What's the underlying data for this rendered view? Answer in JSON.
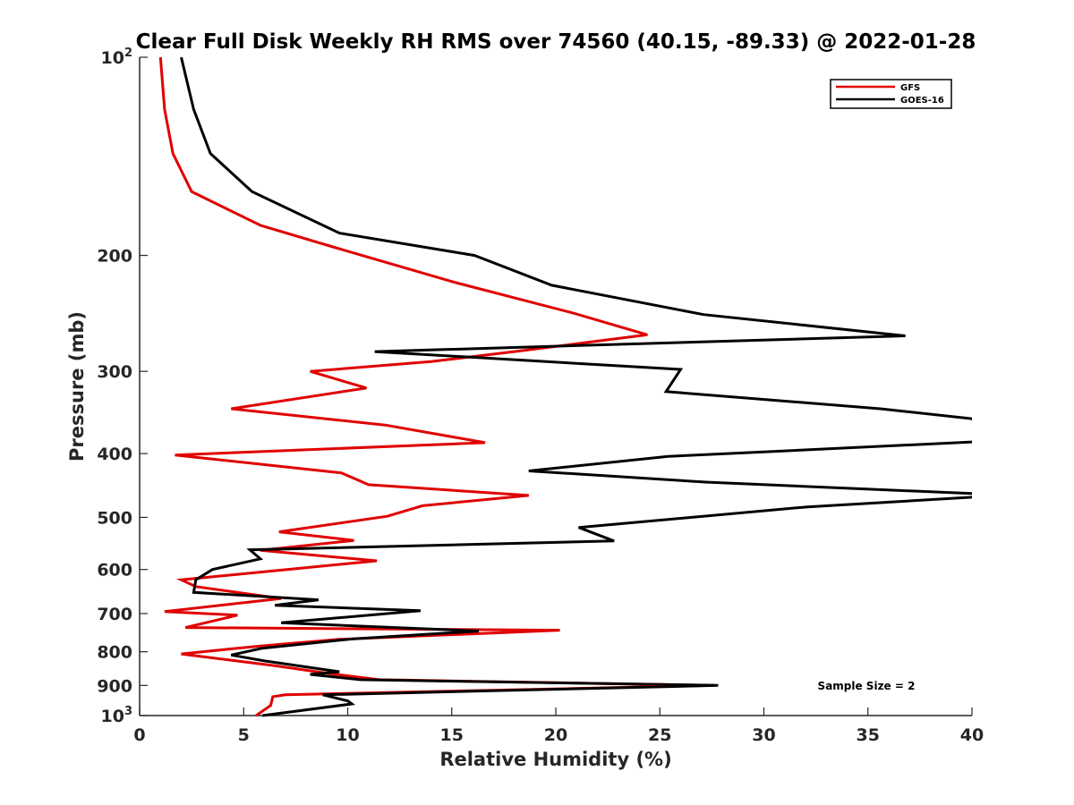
{
  "chart_data": {
    "type": "line",
    "title": "Clear Full Disk Weekly RH RMS over 74560 (40.15, -89.33) @ 2022-01-28",
    "xlabel": "Relative Humidity (%)",
    "ylabel": "Pressure (mb)",
    "xlim": [
      0,
      40
    ],
    "ylim": [
      100,
      1000
    ],
    "y_scale": "log",
    "y_reversed": true,
    "x_ticks": [
      "0",
      "5",
      "10",
      "15",
      "20",
      "25",
      "30",
      "35",
      "40"
    ],
    "x_tick_values": [
      0,
      5,
      10,
      15,
      20,
      25,
      30,
      35,
      40
    ],
    "y_ticks": [
      {
        "value": 100,
        "base": "10",
        "exp": "2"
      },
      {
        "value": 200,
        "label": "200"
      },
      {
        "value": 300,
        "label": "300"
      },
      {
        "value": 400,
        "label": "400"
      },
      {
        "value": 500,
        "label": "500"
      },
      {
        "value": 600,
        "label": "600"
      },
      {
        "value": 700,
        "label": "700"
      },
      {
        "value": 800,
        "label": "800"
      },
      {
        "value": 900,
        "label": "900"
      },
      {
        "value": 1000,
        "base": "10",
        "exp": "3"
      }
    ],
    "grid": false,
    "legend_position": "top-right",
    "annotation": "Sample Size = 2",
    "series": [
      {
        "name": "GFS",
        "color": "#e00000",
        "points": [
          [
            1.0,
            100
          ],
          [
            1.2,
            120
          ],
          [
            1.6,
            140
          ],
          [
            2.5,
            160
          ],
          [
            5.8,
            180
          ],
          [
            9.5,
            195
          ],
          [
            15.2,
            220
          ],
          [
            20.9,
            245
          ],
          [
            24.4,
            264
          ],
          [
            18.0,
            280
          ],
          [
            14.0,
            290
          ],
          [
            8.2,
            300
          ],
          [
            10.9,
            318
          ],
          [
            4.4,
            342
          ],
          [
            11.8,
            362
          ],
          [
            16.6,
            385
          ],
          [
            1.7,
            402
          ],
          [
            9.7,
            428
          ],
          [
            11.0,
            446
          ],
          [
            18.7,
            463
          ],
          [
            13.6,
            480
          ],
          [
            11.9,
            498
          ],
          [
            6.7,
            526
          ],
          [
            10.3,
            542
          ],
          [
            5.8,
            561
          ],
          [
            11.4,
            582
          ],
          [
            2.0,
            622
          ],
          [
            2.7,
            637
          ],
          [
            6.8,
            664
          ],
          [
            1.2,
            695
          ],
          [
            4.7,
            704
          ],
          [
            2.2,
            735
          ],
          [
            20.2,
            742
          ],
          [
            9.6,
            766
          ],
          [
            5.8,
            784
          ],
          [
            2.0,
            806
          ],
          [
            6.5,
            840
          ],
          [
            9.3,
            865
          ],
          [
            11.5,
            882
          ],
          [
            27.6,
            900
          ],
          [
            7.0,
            930
          ],
          [
            6.4,
            936
          ],
          [
            6.3,
            965
          ],
          [
            5.6,
            1000
          ]
        ]
      },
      {
        "name": "GOES-16",
        "color": "#000000",
        "points": [
          [
            2.0,
            100
          ],
          [
            2.6,
            120
          ],
          [
            3.4,
            140
          ],
          [
            5.4,
            160
          ],
          [
            9.6,
            185
          ],
          [
            16.1,
            200
          ],
          [
            19.8,
            222
          ],
          [
            27.1,
            246
          ],
          [
            36.8,
            265
          ],
          [
            11.3,
            280
          ],
          [
            26.0,
            298
          ],
          [
            25.3,
            322
          ],
          [
            35.6,
            342
          ],
          [
            40.0,
            354
          ],
          [
            40.5,
            374
          ],
          [
            40.0,
            384
          ],
          [
            25.4,
            404
          ],
          [
            18.7,
            425
          ],
          [
            27.2,
            442
          ],
          [
            40.0,
            460
          ],
          [
            40.5,
            462
          ],
          [
            40.0,
            466
          ],
          [
            32.1,
            482
          ],
          [
            21.1,
            518
          ],
          [
            22.8,
            543
          ],
          [
            5.3,
            560
          ],
          [
            5.8,
            578
          ],
          [
            3.5,
            600
          ],
          [
            2.7,
            622
          ],
          [
            2.6,
            650
          ],
          [
            8.6,
            667
          ],
          [
            6.5,
            680
          ],
          [
            13.5,
            693
          ],
          [
            6.8,
            723
          ],
          [
            16.3,
            744
          ],
          [
            10.2,
            765
          ],
          [
            5.9,
            790
          ],
          [
            4.4,
            809
          ],
          [
            6.0,
            826
          ],
          [
            9.6,
            858
          ],
          [
            8.2,
            866
          ],
          [
            10.6,
            882
          ],
          [
            27.8,
            900
          ],
          [
            8.8,
            930
          ],
          [
            10.0,
            950
          ],
          [
            10.2,
            960
          ],
          [
            5.9,
            1000
          ]
        ]
      }
    ]
  }
}
